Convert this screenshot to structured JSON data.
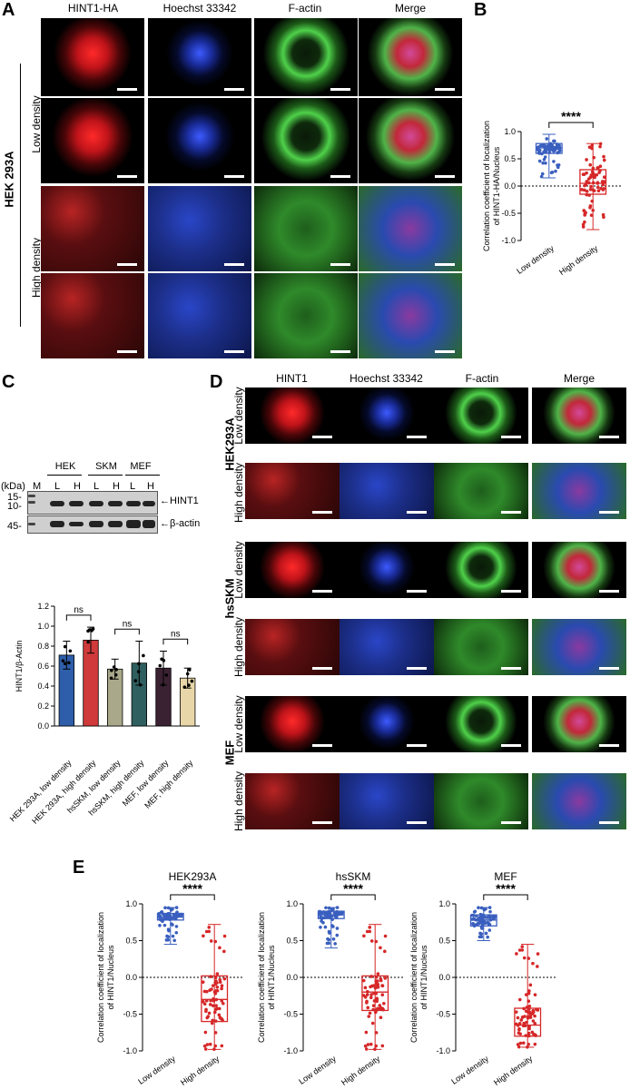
{
  "panelA": {
    "label": "A",
    "columns": [
      "HINT1-HA",
      "Hoechst 33342",
      "F-actin",
      "Merge"
    ],
    "cell_line": "HEK 293A",
    "rows": [
      "Low density",
      "High density"
    ]
  },
  "panelB": {
    "label": "B",
    "significance": "****"
  },
  "panelC": {
    "label": "C",
    "groups": [
      "HEK",
      "SKM",
      "MEF"
    ],
    "kda": "(kDa)",
    "marker": "M",
    "lanes": [
      "L",
      "H",
      "L",
      "H",
      "L",
      "H"
    ],
    "mw": [
      "15-",
      "10-",
      "45-"
    ],
    "bands": [
      "←HINT1",
      "←β-actin"
    ],
    "ns": [
      "ns",
      "ns",
      "ns"
    ]
  },
  "panelD": {
    "label": "D",
    "columns": [
      "HINT1",
      "Hoechst 33342",
      "F-actin",
      "Merge"
    ],
    "groups": [
      "HEK293A",
      "hsSKM",
      "MEF"
    ],
    "rows": [
      "Low density",
      "High density"
    ]
  },
  "panelE": {
    "label": "E",
    "significance": "****"
  },
  "chart_data": [
    {
      "type": "box",
      "panel": "B",
      "categories": [
        "Low density",
        "High density"
      ],
      "ylabel": "Correlation coefficient of localization of HINT1-HA/Nucleus",
      "ylim": [
        -1.0,
        1.0
      ],
      "yticks": [
        "-1.0",
        "-0.5",
        "0.0",
        "0.5",
        "1.0"
      ],
      "reference_line": 0.0,
      "series": [
        {
          "name": "Low density",
          "color": "#3a5fbf",
          "median": 0.7,
          "q1": 0.6,
          "q3": 0.78,
          "min": 0.15,
          "max": 0.95
        },
        {
          "name": "High density",
          "color": "#d62728",
          "median": 0.05,
          "q1": -0.15,
          "q3": 0.3,
          "min": -0.8,
          "max": 0.78
        }
      ]
    },
    {
      "type": "bar",
      "panel": "C",
      "categories": [
        "HEK 293A, low density",
        "HEK 293A, high density",
        "hsSKM, low density",
        "hsSKM, high density",
        "MEF, low density",
        "MEF, high density"
      ],
      "values": [
        0.71,
        0.86,
        0.57,
        0.63,
        0.58,
        0.48
      ],
      "errors": [
        0.14,
        0.13,
        0.1,
        0.22,
        0.17,
        0.1
      ],
      "colors": [
        "#2e5eaa",
        "#d03a3a",
        "#a9a88a",
        "#2f5f5f",
        "#3b2232",
        "#e8d6a8"
      ],
      "ylabel": "HINT1/β-Actin",
      "ylim": [
        0.0,
        1.2
      ],
      "yticks": [
        "0.0",
        "0.2",
        "0.4",
        "0.6",
        "0.8",
        "1.0",
        "1.2"
      ]
    },
    {
      "type": "box",
      "panel": "E",
      "title": "HEK293A",
      "categories": [
        "Low density",
        "High density"
      ],
      "ylabel": "Correlation coefficient of localization of HINT1/Nucleus",
      "ylim": [
        -1.0,
        1.0
      ],
      "yticks": [
        "-1.0",
        "-0.5",
        "0.0",
        "0.5",
        "1.0"
      ],
      "series": [
        {
          "name": "Low density",
          "color": "#3a5fbf",
          "median": 0.82,
          "q1": 0.78,
          "q3": 0.87,
          "min": 0.45,
          "max": 0.95
        },
        {
          "name": "High density",
          "color": "#d62728",
          "median": -0.3,
          "q1": -0.6,
          "q3": 0.02,
          "min": -0.98,
          "max": 0.72
        }
      ]
    },
    {
      "type": "box",
      "panel": "E",
      "title": "hsSKM",
      "categories": [
        "Low density",
        "High density"
      ],
      "ylabel": "Correlation coefficient of localization of HINT1/Nucleus",
      "ylim": [
        -1.0,
        1.0
      ],
      "yticks": [
        "-1.0",
        "-0.5",
        "0.0",
        "0.5",
        "1.0"
      ],
      "series": [
        {
          "name": "Low density",
          "color": "#3a5fbf",
          "median": 0.85,
          "q1": 0.8,
          "q3": 0.9,
          "min": 0.4,
          "max": 0.95
        },
        {
          "name": "High density",
          "color": "#d62728",
          "median": -0.2,
          "q1": -0.45,
          "q3": 0.02,
          "min": -0.98,
          "max": 0.72
        }
      ]
    },
    {
      "type": "box",
      "panel": "E",
      "title": "MEF",
      "categories": [
        "Low density",
        "High density"
      ],
      "ylabel": "Correlation coefficient of localization of HINT1/Nucleus",
      "ylim": [
        -1.0,
        1.0
      ],
      "yticks": [
        "-1.0",
        "-0.5",
        "0.0",
        "0.5",
        "1.0"
      ],
      "series": [
        {
          "name": "Low density",
          "color": "#3a5fbf",
          "median": 0.78,
          "q1": 0.7,
          "q3": 0.85,
          "min": 0.5,
          "max": 0.95
        },
        {
          "name": "High density",
          "color": "#d62728",
          "median": -0.65,
          "q1": -0.8,
          "q3": -0.42,
          "min": -0.95,
          "max": 0.45
        }
      ]
    }
  ]
}
